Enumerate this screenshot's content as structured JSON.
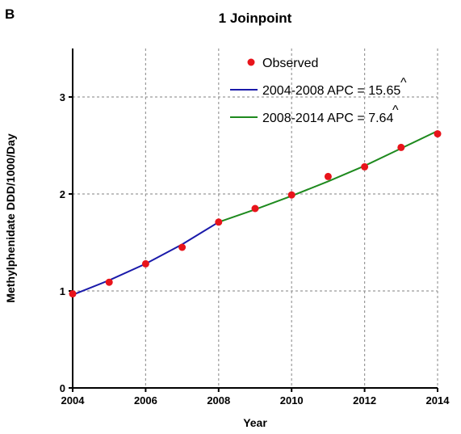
{
  "panel_label": "B",
  "chart_data": {
    "type": "line",
    "title": "1 Joinpoint",
    "xlabel": "Year",
    "ylabel": "Methylphenidate DDD/1000/Day",
    "xlim": [
      2004,
      2014
    ],
    "ylim": [
      0,
      3.5
    ],
    "x_ticks": [
      2004,
      2006,
      2008,
      2010,
      2012,
      2014
    ],
    "y_ticks": [
      0,
      1,
      2,
      3
    ],
    "grid": true,
    "legend_position": "top-right",
    "observed": {
      "name": "Observed",
      "color": "#e8141b",
      "x": [
        2004,
        2005,
        2006,
        2007,
        2008,
        2009,
        2010,
        2011,
        2012,
        2013,
        2014
      ],
      "y": [
        0.97,
        1.09,
        1.28,
        1.45,
        1.71,
        1.85,
        1.99,
        2.18,
        2.28,
        2.48,
        2.62
      ]
    },
    "segments": [
      {
        "name": "2004-2008 APC = 15.65",
        "marker": "^",
        "color": "#1a1aaa",
        "x": [
          2004,
          2005,
          2006,
          2007,
          2008
        ],
        "y": [
          0.96,
          1.11,
          1.28,
          1.48,
          1.71
        ]
      },
      {
        "name": "2008-2014 APC = 7.64",
        "marker": "^",
        "color": "#1e8a1e",
        "x": [
          2008,
          2009,
          2010,
          2011,
          2012,
          2013,
          2014
        ],
        "y": [
          1.71,
          1.84,
          1.98,
          2.13,
          2.29,
          2.47,
          2.65
        ]
      }
    ]
  }
}
